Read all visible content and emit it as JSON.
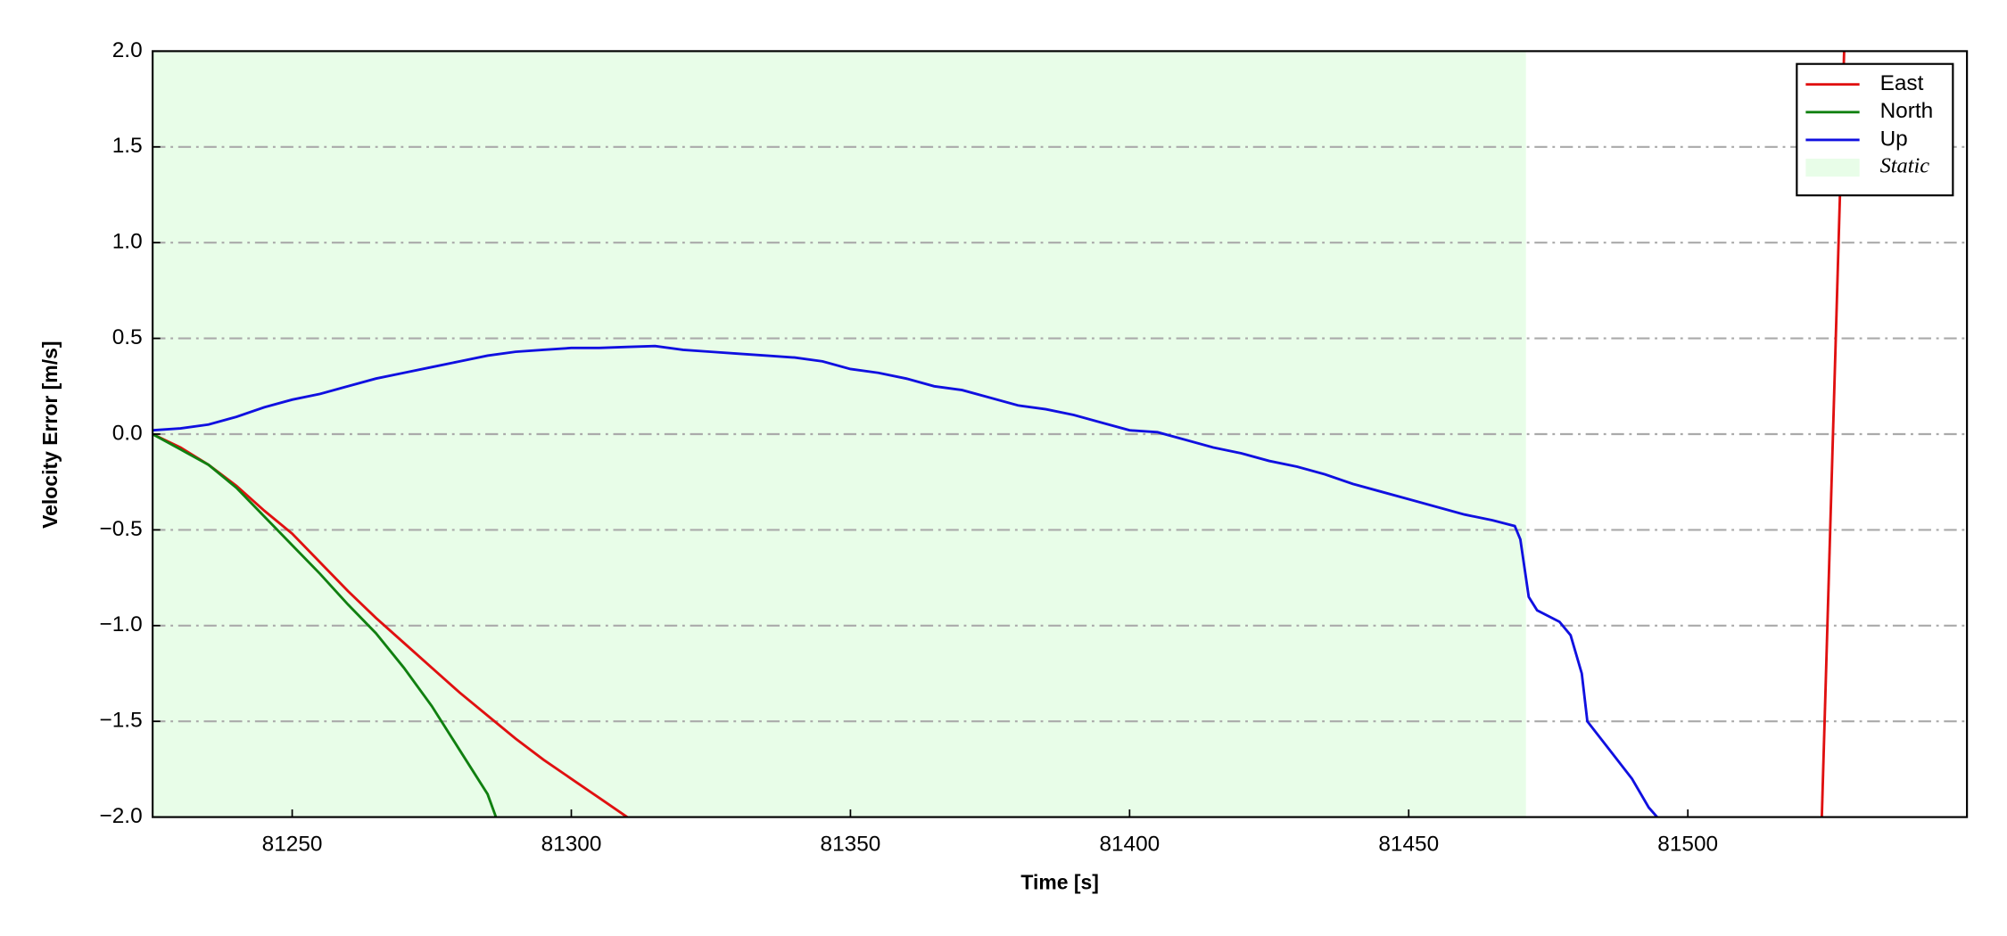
{
  "chart_data": {
    "type": "line",
    "xlabel": "Time [s]",
    "ylabel": "Velocity Error [m/s]",
    "xlim": [
      81225,
      81550
    ],
    "ylim": [
      -2,
      2
    ],
    "xticks": [
      81250,
      81300,
      81350,
      81400,
      81450,
      81500
    ],
    "yticks": [
      {
        "value": -2,
        "label": "−2.0"
      },
      {
        "value": -1.5,
        "label": "−1.5"
      },
      {
        "value": -1,
        "label": "−1.0"
      },
      {
        "value": -0.5,
        "label": "−0.5"
      },
      {
        "value": 0,
        "label": "0.0"
      },
      {
        "value": 0.5,
        "label": "0.5"
      },
      {
        "value": 1,
        "label": "1.0"
      },
      {
        "value": 1.5,
        "label": "1.5"
      },
      {
        "value": 2,
        "label": "2.0"
      }
    ],
    "grid": true,
    "legend": "upper right",
    "spans": [
      {
        "name": "Static",
        "start": 81225,
        "end": 81471,
        "color": "#e8fde8"
      }
    ],
    "series": [
      {
        "name": "East",
        "color": "#e01010",
        "x": [
          81225,
          81230,
          81235,
          81240,
          81245,
          81250,
          81255,
          81260,
          81265,
          81270,
          81275,
          81280,
          81285,
          81290,
          81295,
          81300,
          81305,
          81310,
          81317,
          81524,
          81528
        ],
        "values": [
          0,
          -0.07,
          -0.16,
          -0.27,
          -0.4,
          -0.52,
          -0.67,
          -0.82,
          -0.96,
          -1.09,
          -1.22,
          -1.35,
          -1.47,
          -1.59,
          -1.7,
          -1.8,
          -1.9,
          -2.0,
          null,
          -2.0,
          2.0
        ]
      },
      {
        "name": "North",
        "color": "#108010",
        "x": [
          81225,
          81230,
          81235,
          81240,
          81245,
          81250,
          81255,
          81260,
          81265,
          81270,
          81275,
          81280,
          81285,
          81286.5
        ],
        "values": [
          0,
          -0.08,
          -0.16,
          -0.28,
          -0.43,
          -0.58,
          -0.73,
          -0.89,
          -1.04,
          -1.22,
          -1.42,
          -1.65,
          -1.88,
          -2.0
        ]
      },
      {
        "name": "Up",
        "color": "#1010e0",
        "x": [
          81225,
          81230,
          81235,
          81240,
          81245,
          81250,
          81255,
          81260,
          81265,
          81270,
          81275,
          81280,
          81285,
          81290,
          81295,
          81300,
          81305,
          81310,
          81315,
          81320,
          81325,
          81330,
          81335,
          81340,
          81345,
          81350,
          81355,
          81360,
          81365,
          81370,
          81375,
          81380,
          81385,
          81390,
          81395,
          81400,
          81405,
          81410,
          81415,
          81420,
          81425,
          81430,
          81435,
          81440,
          81445,
          81450,
          81455,
          81460,
          81465,
          81469,
          81470,
          81471.5,
          81473,
          81477,
          81479,
          81481,
          81482,
          81486,
          81490,
          81493,
          81494.5
        ],
        "values": [
          0.02,
          0.03,
          0.05,
          0.09,
          0.14,
          0.18,
          0.21,
          0.25,
          0.29,
          0.32,
          0.35,
          0.38,
          0.41,
          0.43,
          0.44,
          0.45,
          0.45,
          0.455,
          0.46,
          0.44,
          0.43,
          0.42,
          0.41,
          0.4,
          0.38,
          0.34,
          0.32,
          0.29,
          0.25,
          0.23,
          0.19,
          0.15,
          0.13,
          0.1,
          0.06,
          0.02,
          0.01,
          -0.03,
          -0.07,
          -0.1,
          -0.14,
          -0.17,
          -0.21,
          -0.26,
          -0.3,
          -0.34,
          -0.38,
          -0.42,
          -0.45,
          -0.48,
          -0.55,
          -0.85,
          -0.92,
          -0.98,
          -1.05,
          -1.25,
          -1.5,
          -1.65,
          -1.8,
          -1.95,
          -2.0
        ]
      }
    ]
  }
}
